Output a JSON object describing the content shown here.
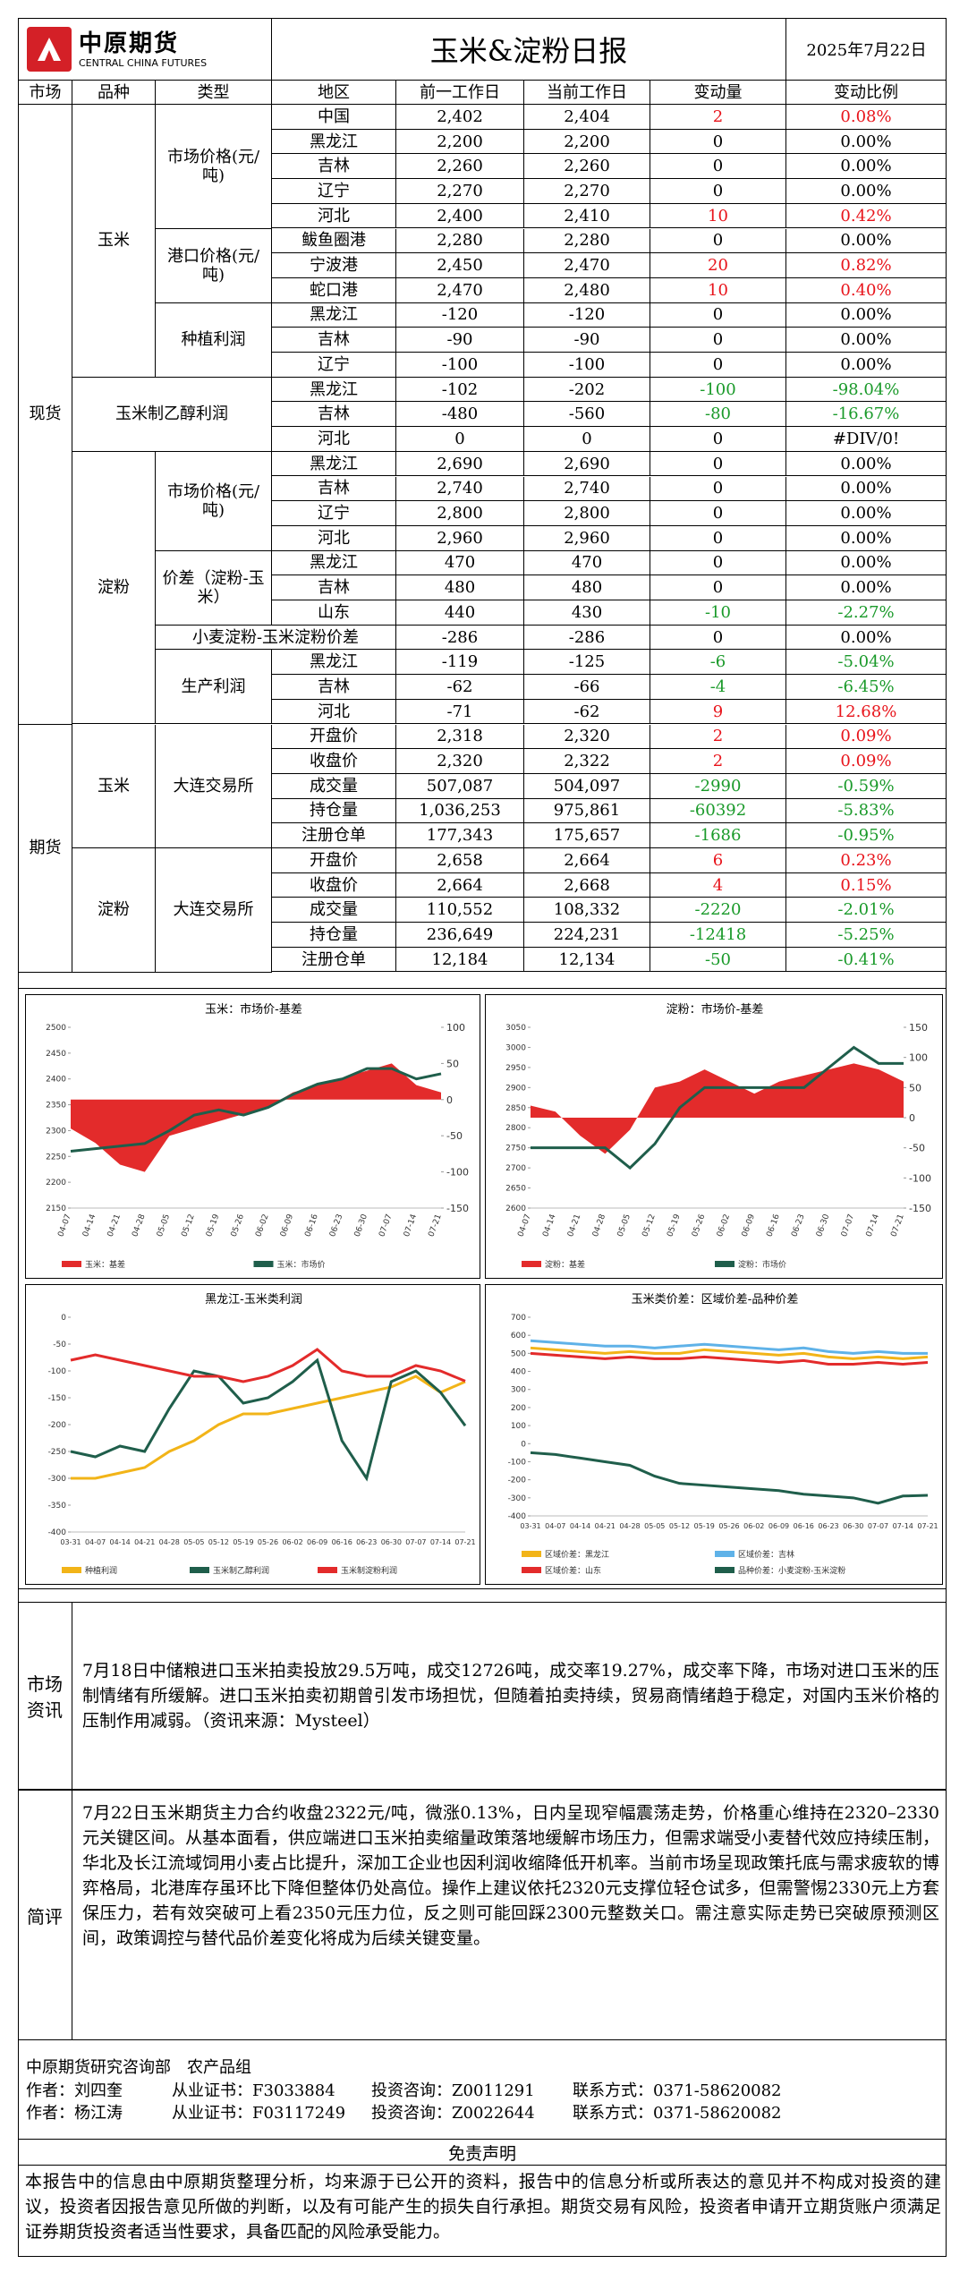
{
  "header": {
    "logo_cn": "中原期货",
    "logo_en": "CENTRAL CHINA FUTURES",
    "title": "玉米&淀粉日报",
    "date": "2025年7月22日"
  },
  "table": {
    "columns": [
      "市场",
      "品种",
      "类型",
      "地区",
      "前一工作日",
      "当前工作日",
      "变动量",
      "变动比例"
    ],
    "markets": [
      {
        "name": "现货",
        "varieties": [
          {
            "name": "玉米",
            "types": [
              {
                "name": "市场价格(元/吨)",
                "rows": [
                  {
                    "region": "中国",
                    "prev": "2,402",
                    "curr": "2,404",
                    "change": "2",
                    "pct": "0.08%"
                  },
                  {
                    "region": "黑龙江",
                    "prev": "2,200",
                    "curr": "2,200",
                    "change": "0",
                    "pct": "0.00%"
                  },
                  {
                    "region": "吉林",
                    "prev": "2,260",
                    "curr": "2,260",
                    "change": "0",
                    "pct": "0.00%"
                  },
                  {
                    "region": "辽宁",
                    "prev": "2,270",
                    "curr": "2,270",
                    "change": "0",
                    "pct": "0.00%"
                  },
                  {
                    "region": "河北",
                    "prev": "2,400",
                    "curr": "2,410",
                    "change": "10",
                    "pct": "0.42%"
                  }
                ]
              },
              {
                "name": "港口价格(元/吨)",
                "rows": [
                  {
                    "region": "鲅鱼圈港",
                    "prev": "2,280",
                    "curr": "2,280",
                    "change": "0",
                    "pct": "0.00%"
                  },
                  {
                    "region": "宁波港",
                    "prev": "2,450",
                    "curr": "2,470",
                    "change": "20",
                    "pct": "0.82%"
                  },
                  {
                    "region": "蛇口港",
                    "prev": "2,470",
                    "curr": "2,480",
                    "change": "10",
                    "pct": "0.40%"
                  }
                ]
              },
              {
                "name": "种植利润",
                "rows": [
                  {
                    "region": "黑龙江",
                    "prev": "-120",
                    "curr": "-120",
                    "change": "0",
                    "pct": "0.00%"
                  },
                  {
                    "region": "吉林",
                    "prev": "-90",
                    "curr": "-90",
                    "change": "0",
                    "pct": "0.00%"
                  },
                  {
                    "region": "辽宁",
                    "prev": "-100",
                    "curr": "-100",
                    "change": "0",
                    "pct": "0.00%"
                  }
                ]
              }
            ]
          },
          {
            "name": "玉米制乙醇利润",
            "types": [
              {
                "rows": [
                  {
                    "region": "黑龙江",
                    "prev": "-102",
                    "curr": "-202",
                    "change": "-100",
                    "pct": "-98.04%"
                  },
                  {
                    "region": "吉林",
                    "prev": "-480",
                    "curr": "-560",
                    "change": "-80",
                    "pct": "-16.67%"
                  },
                  {
                    "region": "河北",
                    "prev": "0",
                    "curr": "0",
                    "change": "0",
                    "pct": "#DIV/0!"
                  }
                ]
              }
            ]
          },
          {
            "name": "淀粉",
            "types": [
              {
                "name": "市场价格(元/吨)",
                "rows": [
                  {
                    "region": "黑龙江",
                    "prev": "2,690",
                    "curr": "2,690",
                    "change": "0",
                    "pct": "0.00%"
                  },
                  {
                    "region": "吉林",
                    "prev": "2,740",
                    "curr": "2,740",
                    "change": "0",
                    "pct": "0.00%"
                  },
                  {
                    "region": "辽宁",
                    "prev": "2,800",
                    "curr": "2,800",
                    "change": "0",
                    "pct": "0.00%"
                  },
                  {
                    "region": "河北",
                    "prev": "2,960",
                    "curr": "2,960",
                    "change": "0",
                    "pct": "0.00%"
                  }
                ]
              },
              {
                "name": "价差（淀粉-玉米）",
                "rows": [
                  {
                    "region": "黑龙江",
                    "prev": "470",
                    "curr": "470",
                    "change": "0",
                    "pct": "0.00%"
                  },
                  {
                    "region": "吉林",
                    "prev": "480",
                    "curr": "480",
                    "change": "0",
                    "pct": "0.00%"
                  },
                  {
                    "region": "山东",
                    "prev": "440",
                    "curr": "430",
                    "change": "-10",
                    "pct": "-2.27%"
                  }
                ]
              },
              {
                "name": "小麦淀粉-玉米淀粉价差",
                "rows": [
                  {
                    "prev": "-286",
                    "curr": "-286",
                    "change": "0",
                    "pct": "0.00%"
                  }
                ]
              },
              {
                "name": "生产利润",
                "rows": [
                  {
                    "region": "黑龙江",
                    "prev": "-119",
                    "curr": "-125",
                    "change": "-6",
                    "pct": "-5.04%"
                  },
                  {
                    "region": "吉林",
                    "prev": "-62",
                    "curr": "-66",
                    "change": "-4",
                    "pct": "-6.45%"
                  },
                  {
                    "region": "河北",
                    "prev": "-71",
                    "curr": "-62",
                    "change": "9",
                    "pct": "12.68%"
                  }
                ]
              }
            ]
          }
        ]
      },
      {
        "name": "期货",
        "varieties": [
          {
            "name": "玉米",
            "types": [
              {
                "name": "大连交易所",
                "rows": [
                  {
                    "region": "开盘价",
                    "prev": "2,318",
                    "curr": "2,320",
                    "change": "2",
                    "pct": "0.09%"
                  },
                  {
                    "region": "收盘价",
                    "prev": "2,320",
                    "curr": "2,322",
                    "change": "2",
                    "pct": "0.09%"
                  },
                  {
                    "region": "成交量",
                    "prev": "507,087",
                    "curr": "504,097",
                    "change": "-2990",
                    "pct": "-0.59%"
                  },
                  {
                    "region": "持仓量",
                    "prev": "1,036,253",
                    "curr": "975,861",
                    "change": "-60392",
                    "pct": "-5.83%"
                  },
                  {
                    "region": "注册仓单",
                    "prev": "177,343",
                    "curr": "175,657",
                    "change": "-1686",
                    "pct": "-0.95%"
                  }
                ]
              }
            ]
          },
          {
            "name": "淀粉",
            "types": [
              {
                "name": "大连交易所",
                "rows": [
                  {
                    "region": "开盘价",
                    "prev": "2,658",
                    "curr": "2,664",
                    "change": "6",
                    "pct": "0.23%"
                  },
                  {
                    "region": "收盘价",
                    "prev": "2,664",
                    "curr": "2,668",
                    "change": "4",
                    "pct": "0.15%"
                  },
                  {
                    "region": "成交量",
                    "prev": "110,552",
                    "curr": "108,332",
                    "change": "-2220",
                    "pct": "-2.01%"
                  },
                  {
                    "region": "持仓量",
                    "prev": "236,649",
                    "curr": "224,231",
                    "change": "-12418",
                    "pct": "-5.25%"
                  },
                  {
                    "region": "注册仓单",
                    "prev": "12,184",
                    "curr": "12,134",
                    "change": "-50",
                    "pct": "-0.41%"
                  }
                ]
              }
            ]
          }
        ]
      }
    ]
  },
  "charts": [
    {
      "type": "line",
      "title": "玉米：市场价-基差",
      "rotate_labels": true,
      "categories": [
        "04-07",
        "04-14",
        "04-21",
        "04-28",
        "05-05",
        "05-12",
        "05-19",
        "05-26",
        "06-02",
        "06-09",
        "06-16",
        "06-23",
        "06-30",
        "07-07",
        "07-14",
        "07-21"
      ],
      "ylim": [
        2150,
        2500
      ],
      "yticks": [
        2150,
        2200,
        2250,
        2300,
        2350,
        2400,
        2450,
        2500
      ],
      "y2lim": [
        -150,
        100
      ],
      "y2ticks": [
        -150,
        -100,
        -50,
        0,
        50,
        100
      ],
      "series": [
        {
          "name": "玉米：基差",
          "color": "#e32b2b",
          "kind": "area",
          "axis": "y2",
          "values": [
            -40,
            -60,
            -90,
            -100,
            -50,
            -40,
            -30,
            -20,
            -10,
            10,
            20,
            30,
            40,
            50,
            20,
            10
          ]
        },
        {
          "name": "玉米：市场价",
          "color": "#1f5e4b",
          "kind": "line",
          "values": [
            2260,
            2265,
            2270,
            2275,
            2300,
            2330,
            2340,
            2330,
            2345,
            2370,
            2390,
            2400,
            2420,
            2420,
            2400,
            2410
          ]
        }
      ]
    },
    {
      "type": "line",
      "title": "淀粉：市场价-基差",
      "rotate_labels": true,
      "categories": [
        "04-07",
        "04-14",
        "04-21",
        "04-28",
        "05-05",
        "05-12",
        "05-19",
        "05-26",
        "06-02",
        "06-09",
        "06-16",
        "06-23",
        "06-30",
        "07-07",
        "07-14",
        "07-21"
      ],
      "ylim": [
        2600,
        3050
      ],
      "yticks": [
        2600,
        2650,
        2700,
        2750,
        2800,
        2850,
        2900,
        2950,
        3000,
        3050
      ],
      "y2lim": [
        -150,
        150
      ],
      "y2ticks": [
        -150,
        -100,
        -50,
        0,
        50,
        100,
        150
      ],
      "series": [
        {
          "name": "淀粉：基差",
          "color": "#e32b2b",
          "kind": "area",
          "axis": "y2",
          "values": [
            20,
            10,
            -30,
            -60,
            -20,
            50,
            60,
            80,
            60,
            40,
            60,
            70,
            80,
            90,
            80,
            60
          ]
        },
        {
          "name": "淀粉：市场价",
          "color": "#1f5e4b",
          "kind": "line",
          "values": [
            2750,
            2750,
            2750,
            2750,
            2700,
            2760,
            2850,
            2900,
            2900,
            2900,
            2900,
            2900,
            2950,
            3000,
            2960,
            2960
          ]
        }
      ]
    },
    {
      "type": "line",
      "title": "黑龙江-玉米类利润",
      "rotate_labels": false,
      "categories": [
        "03-31",
        "04-07",
        "04-14",
        "04-21",
        "04-28",
        "05-05",
        "05-12",
        "05-19",
        "05-26",
        "06-02",
        "06-09",
        "06-16",
        "06-23",
        "06-30",
        "07-07",
        "07-14",
        "07-21"
      ],
      "ylim": [
        -400,
        0
      ],
      "yticks": [
        -400,
        -350,
        -300,
        -250,
        -200,
        -150,
        -100,
        -50,
        0
      ],
      "series": [
        {
          "name": "种植利润",
          "color": "#f2b418",
          "kind": "line",
          "values": [
            -300,
            -300,
            -290,
            -280,
            -250,
            -230,
            -200,
            -180,
            -180,
            -170,
            -160,
            -150,
            -140,
            -130,
            -110,
            -140,
            -120
          ]
        },
        {
          "name": "玉米制乙醇利润",
          "color": "#1f5e4b",
          "kind": "line",
          "values": [
            -250,
            -260,
            -240,
            -250,
            -170,
            -100,
            -110,
            -160,
            -150,
            -120,
            -80,
            -230,
            -300,
            -120,
            -100,
            -140,
            -202
          ]
        },
        {
          "name": "玉米制淀粉利润",
          "color": "#e32b2b",
          "kind": "line",
          "values": [
            -80,
            -70,
            -80,
            -90,
            -100,
            -110,
            -110,
            -120,
            -110,
            -90,
            -60,
            -100,
            -110,
            -110,
            -90,
            -100,
            -119
          ]
        }
      ]
    },
    {
      "type": "line",
      "title": "玉米类价差：区域价差-品种价差",
      "rotate_labels": false,
      "categories": [
        "03-31",
        "04-07",
        "04-14",
        "04-21",
        "04-28",
        "05-05",
        "05-12",
        "05-19",
        "05-26",
        "06-02",
        "06-09",
        "06-16",
        "06-23",
        "06-30",
        "07-07",
        "07-14",
        "07-21"
      ],
      "ylim": [
        -400,
        700
      ],
      "yticks": [
        -400,
        -300,
        -200,
        -100,
        0,
        100,
        200,
        300,
        400,
        500,
        600,
        700
      ],
      "series": [
        {
          "name": "区域价差：黑龙江",
          "color": "#f2b418",
          "kind": "line",
          "values": [
            530,
            520,
            510,
            500,
            510,
            500,
            500,
            520,
            510,
            500,
            490,
            500,
            480,
            470,
            480,
            470,
            480
          ]
        },
        {
          "name": "区域价差：吉林",
          "color": "#5fb2e8",
          "kind": "line",
          "values": [
            570,
            560,
            550,
            540,
            540,
            530,
            540,
            550,
            540,
            530,
            520,
            530,
            510,
            500,
            510,
            500,
            500
          ]
        },
        {
          "name": "区域价差：山东",
          "color": "#e32b2b",
          "kind": "line",
          "values": [
            500,
            490,
            480,
            470,
            480,
            470,
            470,
            480,
            470,
            460,
            450,
            460,
            440,
            440,
            450,
            440,
            450
          ]
        },
        {
          "name": "品种价差：小麦淀粉-玉米淀粉",
          "color": "#1f5e4b",
          "kind": "line",
          "values": [
            -50,
            -60,
            -80,
            -100,
            -120,
            -180,
            -220,
            -230,
            -240,
            -250,
            -260,
            -280,
            -290,
            -300,
            -330,
            -290,
            -286
          ]
        }
      ]
    }
  ],
  "news": {
    "label": "市场资讯",
    "text": "7月18日中储粮进口玉米拍卖投放29.5万吨，成交12726吨，成交率19.27%，成交率下降，市场对进口玉米的压制情绪有所缓解。进口玉米拍卖初期曾引发市场担忧，但随着拍卖持续，贸易商情绪趋于稳定，对国内玉米价格的压制作用减弱。（资讯来源：Mysteel）"
  },
  "comment": {
    "label": "简评",
    "text": "7月22日玉米期货主力合约收盘2322元/吨，微涨0.13%，日内呈现窄幅震荡走势，价格重心维持在2320–2330元关键区间。从基本面看，供应端进口玉米拍卖缩量政策落地缓解市场压力，但需求端受小麦替代效应持续压制，华北及长江流域饲用小麦占比提升，深加工企业也因利润收缩降低开机率。当前市场呈现政策托底与需求疲软的博弈格局，北港库存虽环比下降但整体仍处高位。操作上建议依托2320元支撑位轻仓试多，但需警惕2330元上方套保压力，若有效突破可上看2350元压力位，反之则可能回踩2300元整数关口。需注意实际走势已突破原预测区间，政策调控与替代品价差变化将成为后续关键变量。"
  },
  "footer": {
    "dept": "中原期货研究咨询部　农产品组",
    "authors": [
      [
        "作者：刘四奎",
        "从业证书：F3033884",
        "投资咨询：Z0011291",
        "联系方式：0371-58620082"
      ],
      [
        "作者：杨江涛",
        "从业证书：F03117249",
        "投资咨询：Z0022644",
        "联系方式：0371-58620082"
      ]
    ]
  },
  "disclaimer": {
    "title": "免责声明",
    "text": "本报告中的信息由中原期货整理分析，均来源于已公开的资料，报告中的信息分析或所表达的意见并不构成对投资的建议，投资者因报告意见所做的判断，以及有可能产生的损失自行承担。期货交易有风险，投资者申请开立期货账户须满足证券期货投资者适当性要求，具备匹配的风险承受能力。"
  }
}
